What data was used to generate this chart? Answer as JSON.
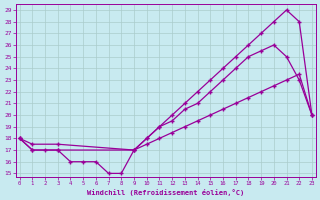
{
  "xlabel": "Windchill (Refroidissement éolien,°C)",
  "bg_color": "#c8eaf0",
  "grid_color": "#aacccc",
  "line_color": "#990099",
  "xlim": [
    -0.3,
    23.3
  ],
  "ylim": [
    14.7,
    29.5
  ],
  "xticks": [
    0,
    1,
    2,
    3,
    4,
    5,
    6,
    7,
    8,
    9,
    10,
    11,
    12,
    13,
    14,
    15,
    16,
    17,
    18,
    19,
    20,
    21,
    22,
    23
  ],
  "yticks": [
    15,
    16,
    17,
    18,
    19,
    20,
    21,
    22,
    23,
    24,
    25,
    26,
    27,
    28,
    29
  ],
  "curve1_x": [
    0,
    1,
    2,
    3,
    4,
    5,
    6,
    7,
    8,
    9,
    10,
    11,
    12,
    13,
    14,
    15,
    16,
    17,
    18,
    19,
    20,
    21,
    22,
    23
  ],
  "curve1_y": [
    18,
    17,
    17,
    17,
    16,
    16,
    16,
    15,
    15,
    17,
    18,
    19,
    20,
    21,
    22,
    23,
    24,
    25,
    26,
    27,
    28,
    29,
    28,
    20
  ],
  "curve2_x": [
    0,
    1,
    3,
    9,
    10,
    11,
    12,
    13,
    14,
    15,
    16,
    17,
    18,
    19,
    20,
    21,
    22,
    23
  ],
  "curve2_y": [
    18,
    17,
    17,
    17,
    18,
    19,
    19.5,
    20.5,
    21,
    22,
    23,
    24,
    25,
    25.5,
    26,
    25,
    23,
    20
  ],
  "curve3_x": [
    0,
    1,
    3,
    9,
    10,
    11,
    12,
    13,
    14,
    15,
    16,
    17,
    18,
    19,
    20,
    21,
    22,
    23
  ],
  "curve3_y": [
    18,
    17.5,
    17.5,
    17,
    17.5,
    18,
    18.5,
    19,
    19.5,
    20,
    20.5,
    21,
    21.5,
    22,
    22.5,
    23,
    23.5,
    20
  ]
}
